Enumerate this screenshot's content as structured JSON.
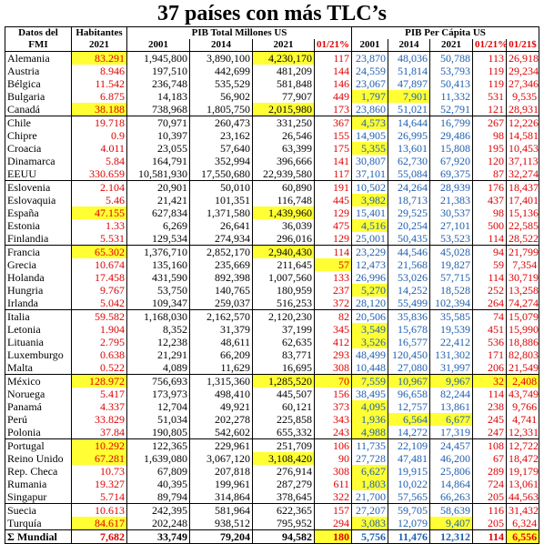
{
  "title": "37 países con más TLC’s",
  "headers": {
    "datos_line1": "Datos del",
    "datos_line2": "FMI",
    "habitantes": "Habitantes",
    "year_2021": "2021",
    "pib_total": "PIB Total Millones US",
    "pib_pc": "PIB Per Cápita US",
    "y2001": "2001",
    "y2014": "2014",
    "y2021": "2021",
    "ratio": "01/21%",
    "diff": "01/21$"
  },
  "colors": {
    "red": "#e00000",
    "blue": "#1f5fb0",
    "highlight": "#ffff33"
  },
  "rows": [
    {
      "name": "Alemania",
      "hab": "83.291",
      "t01": "1,945,800",
      "t14": "3,890,100",
      "t21": "4,230,170",
      "tr": "117",
      "p01": "23,870",
      "p14": "48,036",
      "p21": "50,788",
      "pr": "113",
      "pd": "26,918",
      "hl": [
        "hab",
        "t21"
      ]
    },
    {
      "name": "Austria",
      "hab": "8.946",
      "t01": "197,510",
      "t14": "442,699",
      "t21": "481,209",
      "tr": "144",
      "p01": "24,559",
      "p14": "51,814",
      "p21": "53,793",
      "pr": "119",
      "pd": "29,234",
      "hl": []
    },
    {
      "name": "Bélgica",
      "hab": "11.542",
      "t01": "236,748",
      "t14": "535,529",
      "t21": "581,848",
      "tr": "146",
      "p01": "23,067",
      "p14": "47,897",
      "p21": "50,413",
      "pr": "119",
      "pd": "27,346",
      "hl": []
    },
    {
      "name": "Bulgaria",
      "hab": "6.875",
      "t01": "14,183",
      "t14": "56,902",
      "t21": "77,907",
      "tr": "449",
      "p01": "1,797",
      "p14": "7,901",
      "p21": "11,332",
      "pr": "531",
      "pd": "9,535",
      "hl": [
        "p01",
        "p14"
      ]
    },
    {
      "name": "Canadá",
      "hab": "38.188",
      "t01": "738,968",
      "t14": "1,805,750",
      "t21": "2,015,980",
      "tr": "173",
      "p01": "23,860",
      "p14": "51,021",
      "p21": "52,791",
      "pr": "121",
      "pd": "28,931",
      "hl": [
        "hab",
        "t21"
      ]
    },
    {
      "name": "Chile",
      "hab": "19.718",
      "t01": "70,971",
      "t14": "260,473",
      "t21": "331,250",
      "tr": "367",
      "p01": "4,573",
      "p14": "14,644",
      "p21": "16,799",
      "pr": "267",
      "pd": "12,226",
      "hl": [
        "p01"
      ],
      "grp": true
    },
    {
      "name": "Chipre",
      "hab": "0.9",
      "t01": "10,397",
      "t14": "23,162",
      "t21": "26,546",
      "tr": "155",
      "p01": "14,905",
      "p14": "26,995",
      "p21": "29,486",
      "pr": "98",
      "pd": "14,581",
      "hl": []
    },
    {
      "name": "Croacia",
      "hab": "4.011",
      "t01": "23,055",
      "t14": "57,640",
      "t21": "63,399",
      "tr": "175",
      "p01": "5,355",
      "p14": "13,601",
      "p21": "15,808",
      "pr": "195",
      "pd": "10,453",
      "hl": [
        "p01"
      ]
    },
    {
      "name": "Dinamarca",
      "hab": "5.84",
      "t01": "164,791",
      "t14": "352,994",
      "t21": "396,666",
      "tr": "141",
      "p01": "30,807",
      "p14": "62,730",
      "p21": "67,920",
      "pr": "120",
      "pd": "37,113",
      "hl": []
    },
    {
      "name": "EEUU",
      "hab": "330.659",
      "t01": "10,581,930",
      "t14": "17,550,680",
      "t21": "22,939,580",
      "tr": "117",
      "p01": "37,101",
      "p14": "55,084",
      "p21": "69,375",
      "pr": "87",
      "pd": "32,274",
      "hl": []
    },
    {
      "name": "Eslovenia",
      "hab": "2.104",
      "t01": "20,901",
      "t14": "50,010",
      "t21": "60,890",
      "tr": "191",
      "p01": "10,502",
      "p14": "24,264",
      "p21": "28,939",
      "pr": "176",
      "pd": "18,437",
      "hl": [],
      "grp": true
    },
    {
      "name": "Eslovaquia",
      "hab": "5.46",
      "t01": "21,421",
      "t14": "101,351",
      "t21": "116,748",
      "tr": "445",
      "p01": "3,982",
      "p14": "18,713",
      "p21": "21,383",
      "pr": "437",
      "pd": "17,401",
      "hl": [
        "p01"
      ]
    },
    {
      "name": "España",
      "hab": "47.155",
      "t01": "627,834",
      "t14": "1,371,580",
      "t21": "1,439,960",
      "tr": "129",
      "p01": "15,401",
      "p14": "29,525",
      "p21": "30,537",
      "pr": "98",
      "pd": "15,136",
      "hl": [
        "hab",
        "t21"
      ]
    },
    {
      "name": "Estonia",
      "hab": "1.33",
      "t01": "6,269",
      "t14": "26,641",
      "t21": "36,039",
      "tr": "475",
      "p01": "4,516",
      "p14": "20,254",
      "p21": "27,101",
      "pr": "500",
      "pd": "22,585",
      "hl": [
        "p01"
      ]
    },
    {
      "name": "Finlandia",
      "hab": "5.531",
      "t01": "129,534",
      "t14": "274,934",
      "t21": "296,016",
      "tr": "129",
      "p01": "25,001",
      "p14": "50,435",
      "p21": "53,523",
      "pr": "114",
      "pd": "28,522",
      "hl": []
    },
    {
      "name": "Francia",
      "hab": "65.302",
      "t01": "1,376,710",
      "t14": "2,852,170",
      "t21": "2,940,430",
      "tr": "114",
      "p01": "23,229",
      "p14": "44,546",
      "p21": "45,028",
      "pr": "94",
      "pd": "21,799",
      "hl": [
        "hab",
        "t21"
      ],
      "grp": true
    },
    {
      "name": "Grecia",
      "hab": "10.674",
      "t01": "135,160",
      "t14": "235,669",
      "t21": "211,645",
      "tr": "57",
      "p01": "12,473",
      "p14": "21,568",
      "p21": "19,827",
      "pr": "59",
      "pd": "7,354",
      "hl": [
        "tr"
      ]
    },
    {
      "name": "Holanda",
      "hab": "17.458",
      "t01": "431,590",
      "t14": "892,398",
      "t21": "1,007,560",
      "tr": "133",
      "p01": "26,996",
      "p14": "53,026",
      "p21": "57,715",
      "pr": "114",
      "pd": "30,719",
      "hl": []
    },
    {
      "name": "Hungria",
      "hab": "9.767",
      "t01": "53,750",
      "t14": "140,765",
      "t21": "180,959",
      "tr": "237",
      "p01": "5,270",
      "p14": "14,252",
      "p21": "18,528",
      "pr": "252",
      "pd": "13,258",
      "hl": [
        "p01"
      ]
    },
    {
      "name": "Irlanda",
      "hab": "5.042",
      "t01": "109,347",
      "t14": "259,037",
      "t21": "516,253",
      "tr": "372",
      "p01": "28,120",
      "p14": "55,499",
      "p21": "102,394",
      "pr": "264",
      "pd": "74,274",
      "hl": []
    },
    {
      "name": "Italia",
      "hab": "59.582",
      "t01": "1,168,030",
      "t14": "2,162,570",
      "t21": "2,120,230",
      "tr": "82",
      "p01": "20,506",
      "p14": "35,836",
      "p21": "35,585",
      "pr": "74",
      "pd": "15,079",
      "hl": [],
      "grp": true
    },
    {
      "name": "Letonia",
      "hab": "1.904",
      "t01": "8,352",
      "t14": "31,379",
      "t21": "37,199",
      "tr": "345",
      "p01": "3,549",
      "p14": "15,678",
      "p21": "19,539",
      "pr": "451",
      "pd": "15,990",
      "hl": [
        "p01"
      ]
    },
    {
      "name": "Lituania",
      "hab": "2.795",
      "t01": "12,238",
      "t14": "48,611",
      "t21": "62,635",
      "tr": "412",
      "p01": "3,526",
      "p14": "16,577",
      "p21": "22,412",
      "pr": "536",
      "pd": "18,886",
      "hl": [
        "p01"
      ]
    },
    {
      "name": "Luxemburgo",
      "hab": "0.638",
      "t01": "21,291",
      "t14": "66,209",
      "t21": "83,771",
      "tr": "293",
      "p01": "48,499",
      "p14": "120,450",
      "p21": "131,302",
      "pr": "171",
      "pd": "82,803",
      "hl": []
    },
    {
      "name": "Malta",
      "hab": "0.522",
      "t01": "4,089",
      "t14": "11,629",
      "t21": "16,695",
      "tr": "308",
      "p01": "10,448",
      "p14": "27,080",
      "p21": "31,997",
      "pr": "206",
      "pd": "21,549",
      "hl": []
    },
    {
      "name": "México",
      "hab": "128.972",
      "t01": "756,693",
      "t14": "1,315,360",
      "t21": "1,285,520",
      "tr": "70",
      "p01": "7,559",
      "p14": "10,967",
      "p21": "9,967",
      "pr": "32",
      "pd": "2,408",
      "hl": [
        "hab",
        "t21",
        "tr",
        "p01",
        "p14",
        "p21",
        "pr",
        "pd"
      ],
      "grp": true
    },
    {
      "name": "Noruega",
      "hab": "5.417",
      "t01": "173,973",
      "t14": "498,410",
      "t21": "445,507",
      "tr": "156",
      "p01": "38,495",
      "p14": "96,658",
      "p21": "82,244",
      "pr": "114",
      "pd": "43,749",
      "hl": []
    },
    {
      "name": "Panamá",
      "hab": "4.337",
      "t01": "12,704",
      "t14": "49,921",
      "t21": "60,121",
      "tr": "373",
      "p01": "4,095",
      "p14": "12,757",
      "p21": "13,861",
      "pr": "238",
      "pd": "9,766",
      "hl": [
        "p01"
      ]
    },
    {
      "name": "Perú",
      "hab": "33.829",
      "t01": "51,034",
      "t14": "202,278",
      "t21": "225,858",
      "tr": "343",
      "p01": "1,936",
      "p14": "6,564",
      "p21": "6,677",
      "pr": "245",
      "pd": "4,741",
      "hl": [
        "p01",
        "p14",
        "p21"
      ]
    },
    {
      "name": "Polonia",
      "hab": "37.84",
      "t01": "190,805",
      "t14": "542,602",
      "t21": "655,332",
      "tr": "243",
      "p01": "4,988",
      "p14": "14,272",
      "p21": "17,319",
      "pr": "247",
      "pd": "12,331",
      "hl": [
        "p01"
      ]
    },
    {
      "name": "Portugal",
      "hab": "10.292",
      "t01": "122,365",
      "t14": "229,961",
      "t21": "251,709",
      "tr": "106",
      "p01": "11,735",
      "p14": "22,109",
      "p21": "24,457",
      "pr": "108",
      "pd": "12,722",
      "hl": [
        "hab"
      ],
      "grp": true
    },
    {
      "name": "Reino Unido",
      "hab": "67.281",
      "t01": "1,639,080",
      "t14": "3,067,120",
      "t21": "3,108,420",
      "tr": "90",
      "p01": "27,728",
      "p14": "47,481",
      "p21": "46,200",
      "pr": "67",
      "pd": "18,472",
      "hl": [
        "hab",
        "t21"
      ]
    },
    {
      "name": "Rep. Checa",
      "hab": "10.73",
      "t01": "67,809",
      "t14": "207,818",
      "t21": "276,914",
      "tr": "308",
      "p01": "6,627",
      "p14": "19,915",
      "p21": "25,806",
      "pr": "289",
      "pd": "19,179",
      "hl": [
        "p01"
      ]
    },
    {
      "name": "Rumania",
      "hab": "19.327",
      "t01": "40,395",
      "t14": "199,961",
      "t21": "287,279",
      "tr": "611",
      "p01": "1,803",
      "p14": "10,022",
      "p21": "14,864",
      "pr": "724",
      "pd": "13,061",
      "hl": [
        "p01"
      ]
    },
    {
      "name": "Singapur",
      "hab": "5.714",
      "t01": "89,794",
      "t14": "314,864",
      "t21": "378,645",
      "tr": "322",
      "p01": "21,700",
      "p14": "57,565",
      "p21": "66,263",
      "pr": "205",
      "pd": "44,563",
      "hl": []
    },
    {
      "name": "Suecia",
      "hab": "10.613",
      "t01": "242,395",
      "t14": "581,964",
      "t21": "622,365",
      "tr": "157",
      "p01": "27,207",
      "p14": "59,705",
      "p21": "58,639",
      "pr": "116",
      "pd": "31,432",
      "hl": [],
      "grp": true
    },
    {
      "name": "Turquía",
      "hab": "84.617",
      "t01": "202,248",
      "t14": "938,512",
      "t21": "795,952",
      "tr": "294",
      "p01": "3,083",
      "p14": "12,079",
      "p21": "9,407",
      "pr": "205",
      "pd": "6,324",
      "hl": [
        "hab",
        "p01",
        "p21"
      ]
    }
  ],
  "total": {
    "name": "Σ Mundial",
    "hab": "7,682",
    "t01": "33,749",
    "t14": "79,204",
    "t21": "94,582",
    "tr": "180",
    "p01": "5,756",
    "p14": "11,476",
    "p21": "12,312",
    "pr": "114",
    "pd": "6,556",
    "hl": [
      "tr",
      "pd"
    ]
  }
}
